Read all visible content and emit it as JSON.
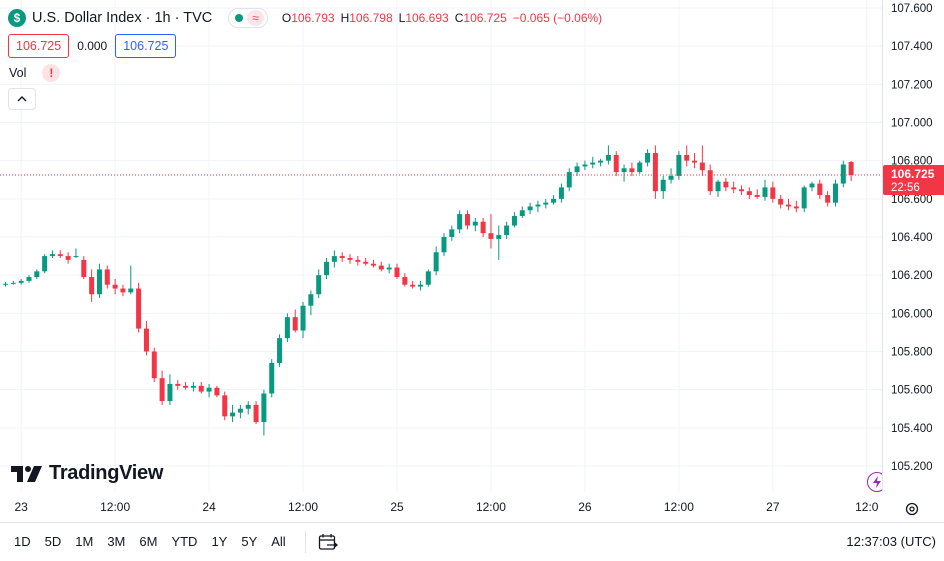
{
  "symbol": {
    "logo_letter": "$",
    "title": "U.S. Dollar Index · 1h · TVC",
    "status_wave": "≈"
  },
  "ohlc": {
    "o_label": "O",
    "o_value": "106.793",
    "h_label": "H",
    "h_value": "106.798",
    "l_label": "L",
    "l_value": "106.693",
    "c_label": "C",
    "c_value": "106.725",
    "change": "−0.065 (−0.06%)"
  },
  "quote": {
    "bid": "106.725",
    "spread": "0.000",
    "ask": "106.725"
  },
  "volume": {
    "label": "Vol",
    "warning": "!"
  },
  "brand": {
    "name": "TradingView"
  },
  "last_price": {
    "value": "106.725",
    "countdown": "22:56"
  },
  "bottom_bar": {
    "ranges": [
      "1D",
      "5D",
      "1M",
      "3M",
      "6M",
      "YTD",
      "1Y",
      "5Y",
      "All"
    ],
    "clock": "12:37:03 (UTC)"
  },
  "colors": {
    "up": "#089981",
    "down": "#f23645",
    "grid": "#f0f3fa",
    "accent": "#2962ff"
  },
  "icons": [
    "dollar-logo-icon",
    "status-dot-icon",
    "chevron-up-icon",
    "tradingview-logo-icon",
    "brand-badge-icon",
    "gear-icon",
    "calendar-goto-icon"
  ],
  "chart_data": {
    "type": "candlestick",
    "interval": "1h",
    "ylim": [
      105.2,
      107.6
    ],
    "yticks": [
      "107.600",
      "107.400",
      "107.200",
      "107.000",
      "106.800",
      "106.600",
      "106.400",
      "106.200",
      "106.000",
      "105.800",
      "105.600",
      "105.400",
      "105.200"
    ],
    "xticks": [
      {
        "label": "23",
        "index": 2
      },
      {
        "label": "12:00",
        "index": 14
      },
      {
        "label": "24",
        "index": 26
      },
      {
        "label": "12:00",
        "index": 38
      },
      {
        "label": "25",
        "index": 50
      },
      {
        "label": "12:00",
        "index": 62
      },
      {
        "label": "26",
        "index": 74
      },
      {
        "label": "12:00",
        "index": 86
      },
      {
        "label": "27",
        "index": 98
      },
      {
        "label": "12:0",
        "index": 110
      }
    ],
    "candles": [
      [
        106.15,
        106.165,
        106.14,
        106.155
      ],
      [
        106.155,
        106.17,
        106.15,
        106.16
      ],
      [
        106.16,
        106.18,
        106.15,
        106.17
      ],
      [
        106.17,
        106.2,
        106.16,
        106.19
      ],
      [
        106.19,
        106.23,
        106.18,
        106.22
      ],
      [
        106.22,
        106.31,
        106.21,
        106.3
      ],
      [
        106.3,
        106.33,
        106.29,
        106.31
      ],
      [
        106.31,
        106.33,
        106.29,
        106.3
      ],
      [
        106.3,
        106.32,
        106.26,
        106.28
      ],
      [
        106.3,
        106.34,
        106.29,
        106.3
      ],
      [
        106.28,
        106.3,
        106.18,
        106.19
      ],
      [
        106.19,
        106.23,
        106.06,
        106.1
      ],
      [
        106.1,
        106.26,
        106.08,
        106.23
      ],
      [
        106.23,
        106.25,
        106.13,
        106.15
      ],
      [
        106.15,
        106.18,
        106.1,
        106.13
      ],
      [
        106.13,
        106.15,
        106.09,
        106.11
      ],
      [
        106.11,
        106.25,
        106.1,
        106.13
      ],
      [
        106.13,
        106.16,
        105.9,
        105.92
      ],
      [
        105.92,
        105.96,
        105.78,
        105.8
      ],
      [
        105.8,
        105.82,
        105.64,
        105.66
      ],
      [
        105.66,
        105.7,
        105.52,
        105.54
      ],
      [
        105.54,
        105.68,
        105.52,
        105.63
      ],
      [
        105.63,
        105.65,
        105.6,
        105.62
      ],
      [
        105.62,
        105.64,
        105.6,
        105.61
      ],
      [
        105.61,
        105.64,
        105.59,
        105.62
      ],
      [
        105.62,
        105.64,
        105.58,
        105.59
      ],
      [
        105.59,
        105.63,
        105.56,
        105.61
      ],
      [
        105.61,
        105.62,
        105.56,
        105.57
      ],
      [
        105.57,
        105.59,
        105.44,
        105.46
      ],
      [
        105.46,
        105.52,
        105.43,
        105.48
      ],
      [
        105.48,
        105.52,
        105.45,
        105.5
      ],
      [
        105.5,
        105.54,
        105.47,
        105.52
      ],
      [
        105.52,
        105.54,
        105.42,
        105.43
      ],
      [
        105.43,
        105.6,
        105.36,
        105.58
      ],
      [
        105.58,
        105.76,
        105.56,
        105.74
      ],
      [
        105.74,
        105.89,
        105.72,
        105.87
      ],
      [
        105.87,
        106.0,
        105.85,
        105.98
      ],
      [
        105.98,
        106.02,
        105.9,
        105.91
      ],
      [
        105.91,
        106.06,
        105.87,
        106.04
      ],
      [
        106.04,
        106.12,
        105.99,
        106.1
      ],
      [
        106.1,
        106.23,
        106.08,
        106.2
      ],
      [
        106.2,
        106.29,
        106.18,
        106.27
      ],
      [
        106.27,
        106.33,
        106.24,
        106.3
      ],
      [
        106.3,
        106.32,
        106.27,
        106.29
      ],
      [
        106.29,
        106.31,
        106.26,
        106.28
      ],
      [
        106.28,
        106.3,
        106.25,
        106.27
      ],
      [
        106.27,
        106.29,
        106.25,
        106.26
      ],
      [
        106.26,
        106.28,
        106.24,
        106.25
      ],
      [
        106.25,
        106.27,
        106.22,
        106.23
      ],
      [
        106.23,
        106.26,
        106.21,
        106.24
      ],
      [
        106.24,
        106.26,
        106.18,
        106.19
      ],
      [
        106.19,
        106.21,
        106.14,
        106.15
      ],
      [
        106.15,
        106.17,
        106.13,
        106.14
      ],
      [
        106.14,
        106.17,
        106.12,
        106.15
      ],
      [
        106.15,
        106.23,
        106.14,
        106.22
      ],
      [
        106.22,
        106.35,
        106.2,
        106.32
      ],
      [
        106.32,
        106.42,
        106.3,
        106.4
      ],
      [
        106.4,
        106.46,
        106.38,
        106.44
      ],
      [
        106.44,
        106.54,
        106.42,
        106.52
      ],
      [
        106.52,
        106.54,
        106.44,
        106.46
      ],
      [
        106.46,
        106.5,
        106.43,
        106.48
      ],
      [
        106.48,
        106.5,
        106.4,
        106.42
      ],
      [
        106.42,
        106.52,
        106.34,
        106.39
      ],
      [
        106.39,
        106.46,
        106.28,
        106.41
      ],
      [
        106.41,
        106.48,
        106.39,
        106.46
      ],
      [
        106.46,
        106.53,
        106.45,
        106.51
      ],
      [
        106.51,
        106.56,
        106.5,
        106.54
      ],
      [
        106.54,
        106.58,
        106.52,
        106.56
      ],
      [
        106.56,
        106.59,
        106.53,
        106.57
      ],
      [
        106.57,
        106.6,
        106.55,
        106.58
      ],
      [
        106.58,
        106.62,
        106.57,
        106.6
      ],
      [
        106.6,
        106.68,
        106.58,
        106.66
      ],
      [
        106.66,
        106.76,
        106.64,
        106.74
      ],
      [
        106.74,
        106.79,
        106.72,
        106.77
      ],
      [
        106.77,
        106.8,
        106.75,
        106.78
      ],
      [
        106.78,
        106.82,
        106.76,
        106.79
      ],
      [
        106.79,
        106.81,
        106.77,
        106.8
      ],
      [
        106.8,
        106.88,
        106.78,
        106.83
      ],
      [
        106.83,
        106.85,
        106.72,
        106.74
      ],
      [
        106.74,
        106.78,
        106.69,
        106.76
      ],
      [
        106.76,
        106.79,
        106.72,
        106.74
      ],
      [
        106.74,
        106.8,
        106.73,
        106.79
      ],
      [
        106.79,
        106.86,
        106.77,
        106.84
      ],
      [
        106.84,
        106.88,
        106.6,
        106.64
      ],
      [
        106.64,
        106.72,
        106.6,
        106.7
      ],
      [
        106.7,
        106.76,
        106.68,
        106.72
      ],
      [
        106.72,
        106.85,
        106.7,
        106.83
      ],
      [
        106.83,
        106.88,
        106.77,
        106.8
      ],
      [
        106.8,
        106.84,
        106.76,
        106.79
      ],
      [
        106.79,
        106.88,
        106.72,
        106.75
      ],
      [
        106.75,
        106.78,
        106.62,
        106.64
      ],
      [
        106.64,
        106.7,
        106.61,
        106.69
      ],
      [
        106.69,
        106.71,
        106.64,
        106.66
      ],
      [
        106.66,
        106.69,
        106.63,
        106.65
      ],
      [
        106.65,
        106.67,
        106.62,
        106.64
      ],
      [
        106.64,
        106.66,
        106.6,
        106.62
      ],
      [
        106.62,
        106.65,
        106.6,
        106.61
      ],
      [
        106.61,
        106.7,
        106.59,
        106.66
      ],
      [
        106.66,
        106.69,
        106.58,
        106.6
      ],
      [
        106.6,
        106.62,
        106.55,
        106.57
      ],
      [
        106.57,
        106.6,
        106.54,
        106.56
      ],
      [
        106.56,
        106.59,
        106.53,
        106.55
      ],
      [
        106.55,
        106.67,
        106.53,
        106.66
      ],
      [
        106.66,
        106.69,
        106.64,
        106.68
      ],
      [
        106.68,
        106.7,
        106.6,
        106.62
      ],
      [
        106.62,
        106.64,
        106.56,
        106.58
      ],
      [
        106.58,
        106.7,
        106.56,
        106.68
      ],
      [
        106.68,
        106.8,
        106.66,
        106.78
      ],
      [
        106.793,
        106.798,
        106.693,
        106.725
      ]
    ],
    "last_price": 106.725,
    "grid": true
  }
}
